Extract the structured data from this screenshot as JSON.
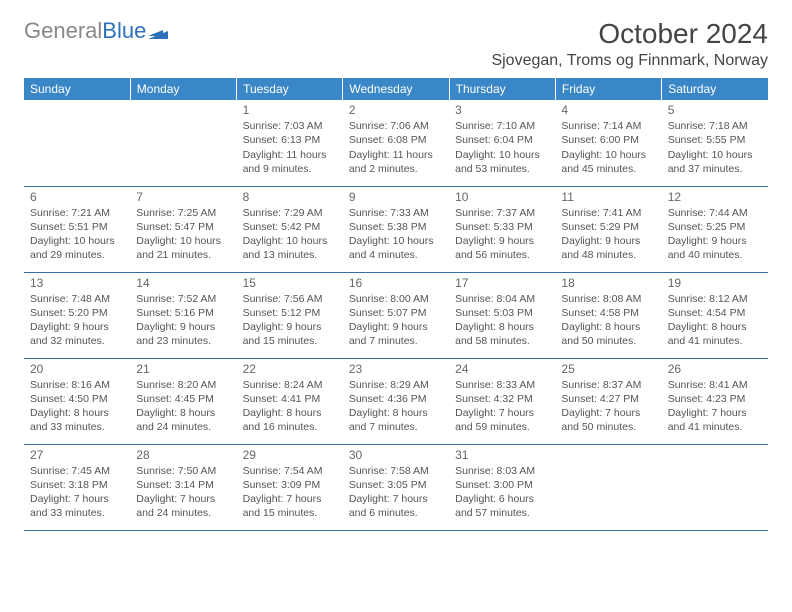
{
  "logo": {
    "text1": "General",
    "text2": "Blue"
  },
  "title": "October 2024",
  "location": "Sjovegan, Troms og Finnmark, Norway",
  "colors": {
    "header_bg": "#3a87c8",
    "header_fg": "#ffffff",
    "border": "#3a6ea5",
    "text": "#555555",
    "title": "#444444",
    "logo_gray": "#888888",
    "logo_blue": "#2d72b8"
  },
  "weekdays": [
    "Sunday",
    "Monday",
    "Tuesday",
    "Wednesday",
    "Thursday",
    "Friday",
    "Saturday"
  ],
  "weeks": [
    [
      null,
      null,
      {
        "n": "1",
        "sunrise": "7:03 AM",
        "sunset": "6:13 PM",
        "daylight": "11 hours and 9 minutes."
      },
      {
        "n": "2",
        "sunrise": "7:06 AM",
        "sunset": "6:08 PM",
        "daylight": "11 hours and 2 minutes."
      },
      {
        "n": "3",
        "sunrise": "7:10 AM",
        "sunset": "6:04 PM",
        "daylight": "10 hours and 53 minutes."
      },
      {
        "n": "4",
        "sunrise": "7:14 AM",
        "sunset": "6:00 PM",
        "daylight": "10 hours and 45 minutes."
      },
      {
        "n": "5",
        "sunrise": "7:18 AM",
        "sunset": "5:55 PM",
        "daylight": "10 hours and 37 minutes."
      }
    ],
    [
      {
        "n": "6",
        "sunrise": "7:21 AM",
        "sunset": "5:51 PM",
        "daylight": "10 hours and 29 minutes."
      },
      {
        "n": "7",
        "sunrise": "7:25 AM",
        "sunset": "5:47 PM",
        "daylight": "10 hours and 21 minutes."
      },
      {
        "n": "8",
        "sunrise": "7:29 AM",
        "sunset": "5:42 PM",
        "daylight": "10 hours and 13 minutes."
      },
      {
        "n": "9",
        "sunrise": "7:33 AM",
        "sunset": "5:38 PM",
        "daylight": "10 hours and 4 minutes."
      },
      {
        "n": "10",
        "sunrise": "7:37 AM",
        "sunset": "5:33 PM",
        "daylight": "9 hours and 56 minutes."
      },
      {
        "n": "11",
        "sunrise": "7:41 AM",
        "sunset": "5:29 PM",
        "daylight": "9 hours and 48 minutes."
      },
      {
        "n": "12",
        "sunrise": "7:44 AM",
        "sunset": "5:25 PM",
        "daylight": "9 hours and 40 minutes."
      }
    ],
    [
      {
        "n": "13",
        "sunrise": "7:48 AM",
        "sunset": "5:20 PM",
        "daylight": "9 hours and 32 minutes."
      },
      {
        "n": "14",
        "sunrise": "7:52 AM",
        "sunset": "5:16 PM",
        "daylight": "9 hours and 23 minutes."
      },
      {
        "n": "15",
        "sunrise": "7:56 AM",
        "sunset": "5:12 PM",
        "daylight": "9 hours and 15 minutes."
      },
      {
        "n": "16",
        "sunrise": "8:00 AM",
        "sunset": "5:07 PM",
        "daylight": "9 hours and 7 minutes."
      },
      {
        "n": "17",
        "sunrise": "8:04 AM",
        "sunset": "5:03 PM",
        "daylight": "8 hours and 58 minutes."
      },
      {
        "n": "18",
        "sunrise": "8:08 AM",
        "sunset": "4:58 PM",
        "daylight": "8 hours and 50 minutes."
      },
      {
        "n": "19",
        "sunrise": "8:12 AM",
        "sunset": "4:54 PM",
        "daylight": "8 hours and 41 minutes."
      }
    ],
    [
      {
        "n": "20",
        "sunrise": "8:16 AM",
        "sunset": "4:50 PM",
        "daylight": "8 hours and 33 minutes."
      },
      {
        "n": "21",
        "sunrise": "8:20 AM",
        "sunset": "4:45 PM",
        "daylight": "8 hours and 24 minutes."
      },
      {
        "n": "22",
        "sunrise": "8:24 AM",
        "sunset": "4:41 PM",
        "daylight": "8 hours and 16 minutes."
      },
      {
        "n": "23",
        "sunrise": "8:29 AM",
        "sunset": "4:36 PM",
        "daylight": "8 hours and 7 minutes."
      },
      {
        "n": "24",
        "sunrise": "8:33 AM",
        "sunset": "4:32 PM",
        "daylight": "7 hours and 59 minutes."
      },
      {
        "n": "25",
        "sunrise": "8:37 AM",
        "sunset": "4:27 PM",
        "daylight": "7 hours and 50 minutes."
      },
      {
        "n": "26",
        "sunrise": "8:41 AM",
        "sunset": "4:23 PM",
        "daylight": "7 hours and 41 minutes."
      }
    ],
    [
      {
        "n": "27",
        "sunrise": "7:45 AM",
        "sunset": "3:18 PM",
        "daylight": "7 hours and 33 minutes."
      },
      {
        "n": "28",
        "sunrise": "7:50 AM",
        "sunset": "3:14 PM",
        "daylight": "7 hours and 24 minutes."
      },
      {
        "n": "29",
        "sunrise": "7:54 AM",
        "sunset": "3:09 PM",
        "daylight": "7 hours and 15 minutes."
      },
      {
        "n": "30",
        "sunrise": "7:58 AM",
        "sunset": "3:05 PM",
        "daylight": "7 hours and 6 minutes."
      },
      {
        "n": "31",
        "sunrise": "8:03 AM",
        "sunset": "3:00 PM",
        "daylight": "6 hours and 57 minutes."
      },
      null,
      null
    ]
  ]
}
